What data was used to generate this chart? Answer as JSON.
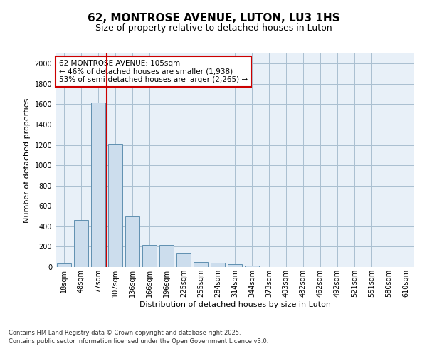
{
  "title1": "62, MONTROSE AVENUE, LUTON, LU3 1HS",
  "title2": "Size of property relative to detached houses in Luton",
  "xlabel": "Distribution of detached houses by size in Luton",
  "ylabel": "Number of detached properties",
  "categories": [
    "18sqm",
    "48sqm",
    "77sqm",
    "107sqm",
    "136sqm",
    "166sqm",
    "196sqm",
    "225sqm",
    "255sqm",
    "284sqm",
    "314sqm",
    "344sqm",
    "373sqm",
    "403sqm",
    "432sqm",
    "462sqm",
    "492sqm",
    "521sqm",
    "551sqm",
    "580sqm",
    "610sqm"
  ],
  "values": [
    35,
    460,
    1620,
    1210,
    500,
    220,
    220,
    130,
    50,
    45,
    25,
    15,
    0,
    0,
    0,
    0,
    0,
    0,
    0,
    0,
    0
  ],
  "bar_color": "#ccdded",
  "bar_edge_color": "#6090b0",
  "vline_color": "#cc0000",
  "vline_index": 2.5,
  "annotation_text": "62 MONTROSE AVENUE: 105sqm\n← 46% of detached houses are smaller (1,938)\n53% of semi-detached houses are larger (2,265) →",
  "annotation_box_color": "#cc0000",
  "ylim": [
    0,
    2100
  ],
  "yticks": [
    0,
    200,
    400,
    600,
    800,
    1000,
    1200,
    1400,
    1600,
    1800,
    2000
  ],
  "grid_color": "#aabfd0",
  "bg_color": "#e8f0f8",
  "footer1": "Contains HM Land Registry data © Crown copyright and database right 2025.",
  "footer2": "Contains public sector information licensed under the Open Government Licence v3.0.",
  "title_fontsize": 11,
  "subtitle_fontsize": 9,
  "axis_label_fontsize": 8,
  "tick_fontsize": 7,
  "annotation_fontsize": 7.5,
  "footer_fontsize": 6
}
